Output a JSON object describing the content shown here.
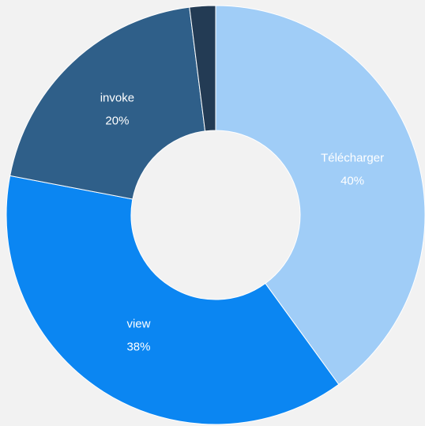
{
  "chart_data": {
    "type": "donut",
    "categories": [
      "Télécharger",
      "view",
      "invoke",
      null
    ],
    "values": [
      40,
      38,
      20,
      2
    ],
    "value_labels": [
      "40%",
      "38%",
      "20%",
      null
    ],
    "colors": [
      "#a0cdf7",
      "#0b86f2",
      "#2f5f89",
      "#233b54"
    ]
  }
}
